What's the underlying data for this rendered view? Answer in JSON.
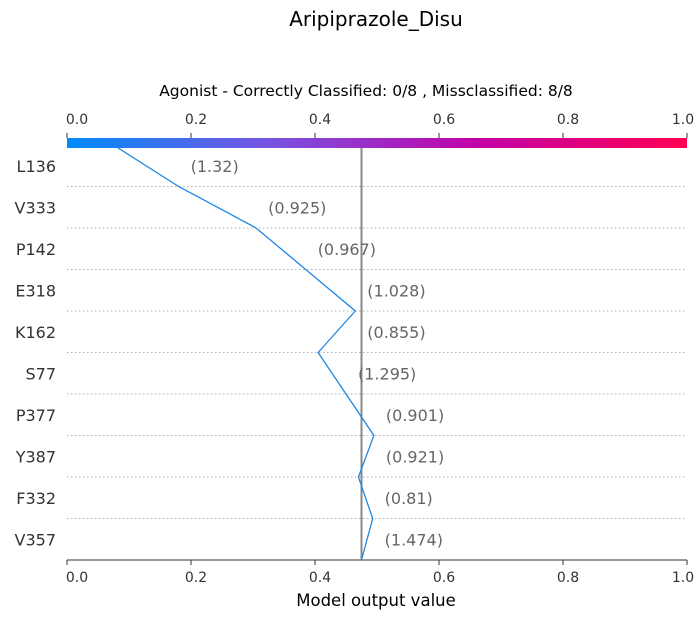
{
  "chart_data": {
    "type": "line",
    "title": "Aripiprazole_Disu",
    "subtitle": "Agonist - Correctly Classified: 0/8 , Missclassified: 8/8",
    "xlabel": "Model output value",
    "xlim": [
      0.0,
      1.0
    ],
    "xticks": [
      "0.0",
      "0.2",
      "0.4",
      "0.6",
      "0.8",
      "1.0"
    ],
    "tick_values": [
      0.0,
      0.2,
      0.4,
      0.6,
      0.8,
      1.0
    ],
    "base_value": 0.08,
    "reference_line": 0.475,
    "colorbar": {
      "colors": [
        "#008bfb",
        "#7a52e0",
        "#c400a8",
        "#ff0052"
      ]
    },
    "line_color": "#1e88e5",
    "features": [
      {
        "name": "L136",
        "value": "(1.32)",
        "cum": 0.18
      },
      {
        "name": "V333",
        "value": "(0.925)",
        "cum": 0.305
      },
      {
        "name": "P142",
        "value": "(0.967)",
        "cum": 0.385
      },
      {
        "name": "E318",
        "value": "(1.028)",
        "cum": 0.465
      },
      {
        "name": "K162",
        "value": "(0.855)",
        "cum": 0.405
      },
      {
        "name": "S77",
        "value": "(1.295)",
        "cum": 0.45
      },
      {
        "name": "P377",
        "value": "(0.901)",
        "cum": 0.495
      },
      {
        "name": "Y387",
        "value": "(0.921)",
        "cum": 0.47
      },
      {
        "name": "F332",
        "value": "(0.81)",
        "cum": 0.493
      },
      {
        "name": "V357",
        "value": "(1.474)",
        "cum": 0.475
      }
    ]
  }
}
